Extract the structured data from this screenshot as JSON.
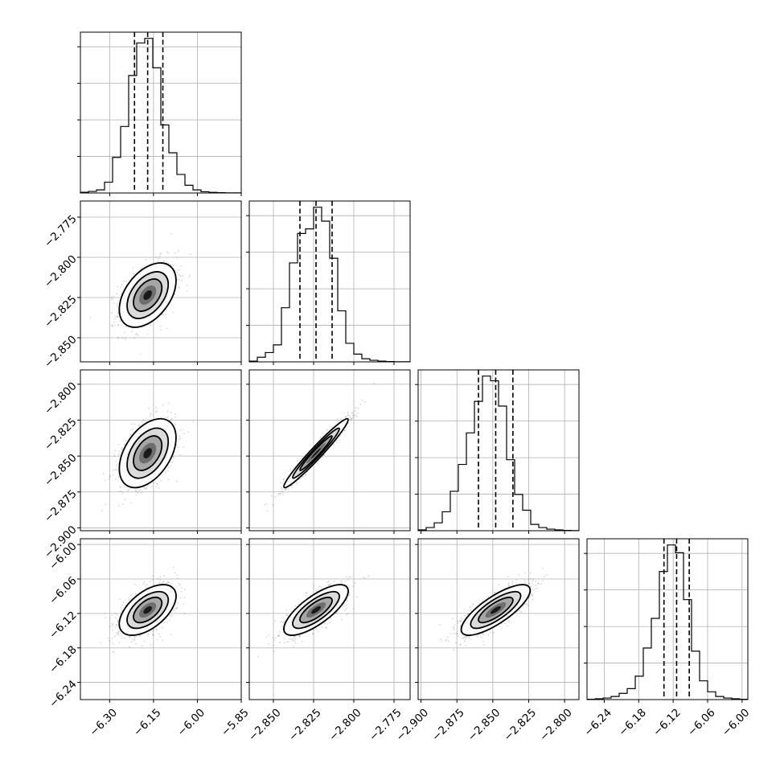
{
  "chart_data": {
    "type": "corner",
    "grid": true,
    "params": [
      {
        "median": -6.17,
        "q16": -6.215,
        "q84": -6.118,
        "range": [
          -6.4,
          -5.85
        ],
        "ticks": [
          -6.3,
          -6.15,
          -6.0,
          -5.85
        ],
        "tick_labels": [
          "−6.30",
          "−6.15",
          "−6.00",
          "−5.85"
        ],
        "hist": [
          0.005,
          0.01,
          0.02,
          0.07,
          0.23,
          0.43,
          0.76,
          0.97,
          1.0,
          0.81,
          0.44,
          0.26,
          0.12,
          0.05,
          0.02,
          0.008,
          0.004,
          0.002,
          0.001,
          0.001
        ]
      },
      {
        "median": -2.8235,
        "q16": -2.8335,
        "q84": -2.8135,
        "range": [
          -2.865,
          -2.765
        ],
        "ticks": [
          -2.85,
          -2.825,
          -2.8,
          -2.775
        ],
        "tick_labels": [
          "−2.850",
          "−2.825",
          "−2.800",
          "−2.775"
        ],
        "hist": [
          0.005,
          0.03,
          0.06,
          0.11,
          0.35,
          0.64,
          0.83,
          0.86,
          1.0,
          0.91,
          0.67,
          0.33,
          0.12,
          0.05,
          0.02,
          0.01,
          0.005,
          0.002,
          0.001,
          0.001
        ]
      },
      {
        "median": -2.848,
        "q16": -2.86,
        "q84": -2.836,
        "range": [
          -2.902,
          -2.79
        ],
        "ticks": [
          -2.9,
          -2.875,
          -2.85,
          -2.825,
          -2.8
        ],
        "tick_labels": [
          "−2.900",
          "−2.875",
          "−2.850",
          "−2.825",
          "−2.800"
        ],
        "hist": [
          0.005,
          0.02,
          0.05,
          0.12,
          0.25,
          0.42,
          0.62,
          0.82,
          0.98,
          0.95,
          0.79,
          0.45,
          0.23,
          0.13,
          0.04,
          0.02,
          0.01,
          0.005,
          0.002,
          0.001
        ]
      },
      {
        "median": -6.114,
        "q16": -6.136,
        "q84": -6.092,
        "range": [
          -6.27,
          -5.99
        ],
        "ticks": [
          -6.24,
          -6.18,
          -6.12,
          -6.06,
          -6.0
        ],
        "tick_labels": [
          "−6.24",
          "−6.18",
          "−6.12",
          "−6.06",
          "−6.00"
        ],
        "hist": [
          0.002,
          0.005,
          0.01,
          0.02,
          0.04,
          0.07,
          0.15,
          0.33,
          0.52,
          0.82,
          0.99,
          0.94,
          0.64,
          0.31,
          0.12,
          0.05,
          0.02,
          0.01,
          0.005,
          0.002
        ]
      }
    ],
    "correlations": {
      "1-0": 0.45,
      "2-0": 0.45,
      "2-1": 0.97,
      "3-0": 0.55,
      "3-1": 0.75,
      "3-2": 0.78
    }
  }
}
